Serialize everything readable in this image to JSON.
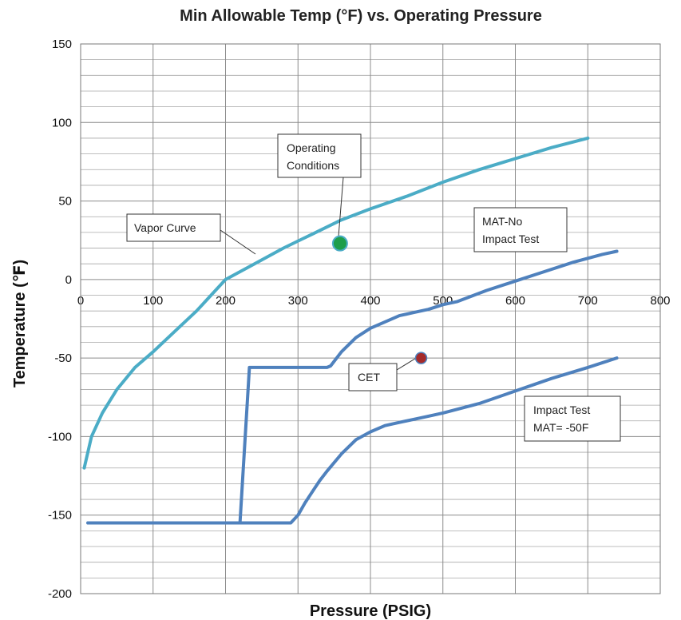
{
  "chart_data": {
    "type": "line",
    "title": "Min Allowable Temp (°F) vs. Operating Pressure",
    "xlabel": "Pressure (PSIG)",
    "ylabel": "Temperature  (℉)",
    "xlim": [
      0,
      800
    ],
    "ylim": [
      -200,
      150
    ],
    "x_ticks": [
      0,
      100,
      200,
      300,
      400,
      500,
      600,
      700,
      800
    ],
    "y_ticks": [
      -200,
      -150,
      -100,
      -50,
      0,
      50,
      100,
      150
    ],
    "grid": true,
    "colors": {
      "vapor": "#4bacc6",
      "mat": "#4f81bd",
      "operating": "#1e9e4a",
      "cet": "#a52a2a"
    },
    "series": [
      {
        "key": "vapor",
        "x": [
          5,
          15,
          30,
          50,
          75,
          100,
          130,
          160,
          200,
          240,
          280,
          320,
          360,
          400,
          450,
          500,
          550,
          600,
          650,
          700
        ],
        "y": [
          -120,
          -100,
          -85,
          -70,
          -56,
          -46,
          -33,
          -20,
          0,
          10,
          20,
          29,
          38,
          45,
          53,
          62,
          70,
          77,
          84,
          90
        ]
      },
      {
        "key": "mat_no_impact",
        "x": [
          10,
          220,
          233,
          340,
          345,
          360,
          380,
          400,
          420,
          440,
          460,
          480,
          500,
          520,
          560,
          600,
          640,
          680,
          720,
          740
        ],
        "y": [
          -155,
          -155,
          -56,
          -56,
          -55,
          -46,
          -37,
          -31,
          -27,
          -23,
          -21,
          -19,
          -16,
          -14,
          -7,
          -1,
          5,
          11,
          16,
          18
        ]
      },
      {
        "key": "impact_test",
        "x": [
          10,
          290,
          300,
          310,
          320,
          330,
          340,
          360,
          380,
          400,
          420,
          440,
          460,
          480,
          500,
          550,
          600,
          650,
          700,
          740
        ],
        "y": [
          -155,
          -155,
          -150,
          -142,
          -135,
          -128,
          -122,
          -111,
          -102,
          -97,
          -93,
          -91,
          -89,
          -87,
          -85,
          -79,
          -71,
          -63,
          -56,
          -50
        ]
      }
    ],
    "points": [
      {
        "key": "operating",
        "x": 358,
        "y": 23
      },
      {
        "key": "cet",
        "x": 470,
        "y": -50
      }
    ],
    "annotations": {
      "vapor_curve": "Vapor Curve",
      "operating_1": "Operating",
      "operating_2": "Conditions",
      "mat_no_impact_1": "MAT-No",
      "mat_no_impact_2": "Impact Test",
      "cet": "CET",
      "impact_test_1": "Impact Test",
      "impact_test_2": "MAT= -50F"
    }
  }
}
